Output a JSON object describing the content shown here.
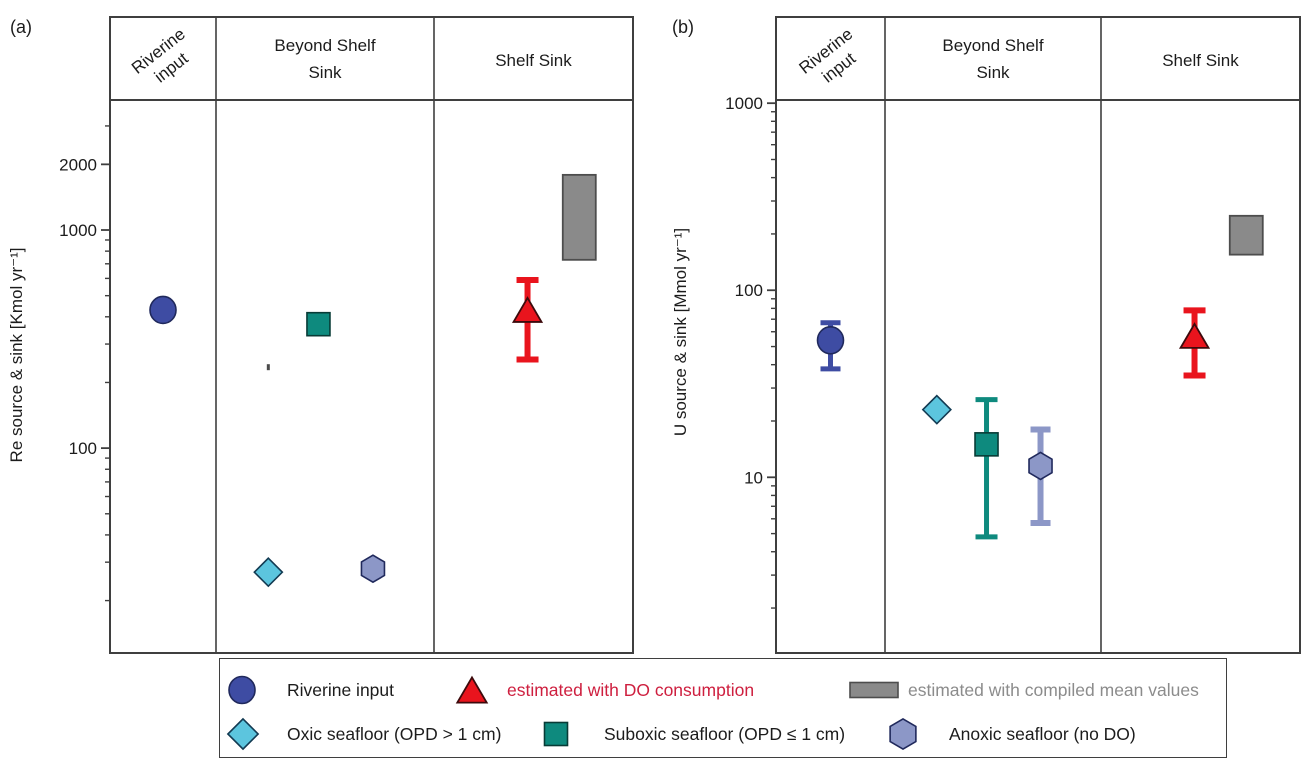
{
  "colors": {
    "riverine_fill": "#3E4CA3",
    "riverine_stroke": "#20295C",
    "oxic_fill": "#5CC5DE",
    "oxic_stroke": "#123A52",
    "suboxic_fill": "#0E8A7E",
    "suboxic_stroke": "#083B36",
    "anoxic_fill": "#8C97C7",
    "anoxic_stroke": "#20295C",
    "red_fill": "#E9141D",
    "red_stroke": "#3D0A0C",
    "gray_fill": "#8A8A8A",
    "gray_stroke": "#4D4D4D",
    "speck_fill": "#4A4A4A",
    "speck_stroke": "#4A4A4A",
    "red_text": "#CE1F3F",
    "gray_text": "#8C8C8C",
    "black_text": "#1C1C1C",
    "axis": "#3F3F3F"
  },
  "chart_data": [
    {
      "type": "scatter",
      "id": "a",
      "panel_label": "(a)",
      "ylabel": "Re source & sink [Kmol yr⁻¹]",
      "yscale": "log",
      "ylim": [
        11.5,
        3945
      ],
      "yticks_labeled": [
        2000,
        1000,
        100
      ],
      "grid": false,
      "columns": [
        [
          "Riverine",
          "input"
        ],
        [
          "Beyond Shelf",
          "Sink"
        ],
        [
          "Shelf Sink"
        ]
      ],
      "points": [
        {
          "label": "Riverine input",
          "marker": "circle",
          "color": "riverine",
          "col": 1,
          "xfrac": 0.5,
          "value": 430
        },
        {
          "label": "Oxic seafloor (OPD > 1 cm)",
          "marker": "diamond",
          "color": "oxic",
          "col": 2,
          "xfrac": 0.24,
          "value": 27
        },
        {
          "label": "Suboxic seafloor (OPD ≤ 1 cm)",
          "marker": "square",
          "color": "suboxic",
          "col": 2,
          "xfrac": 0.47,
          "value": 370
        },
        {
          "label": "Anoxic seafloor (no DO)",
          "marker": "hexagon",
          "color": "anoxic",
          "col": 2,
          "xfrac": 0.72,
          "value": 28
        },
        {
          "label": "estimated with DO consumption",
          "marker": "triangle",
          "color": "red",
          "col": 3,
          "xfrac": 0.47,
          "value": 430,
          "err_low": 255,
          "err_high": 590
        },
        {
          "label": "estimated with compiled mean values",
          "marker": "range-rect",
          "color": "gray",
          "col": 3,
          "xfrac": 0.73,
          "range_low": 730,
          "range_high": 1790
        },
        {
          "label": "stray mark",
          "marker": "speck",
          "color": "speck",
          "col": 2,
          "xfrac": 0.24,
          "value": 235
        }
      ]
    },
    {
      "type": "scatter",
      "id": "b",
      "panel_label": "(b)",
      "ylabel": "U source & sink [Mmol yr⁻¹]",
      "yscale": "log",
      "ylim": [
        1.15,
        1040
      ],
      "yticks_labeled": [
        1000,
        100,
        10
      ],
      "grid": false,
      "columns": [
        [
          "Riverine",
          "input"
        ],
        [
          "Beyond Shelf",
          "Sink"
        ],
        [
          "Shelf Sink"
        ]
      ],
      "points": [
        {
          "label": "Riverine input",
          "marker": "circle",
          "color": "riverine",
          "col": 1,
          "xfrac": 0.5,
          "value": 54,
          "err_low": 38,
          "err_high": 67
        },
        {
          "label": "Oxic seafloor (OPD > 1 cm)",
          "marker": "diamond",
          "color": "oxic",
          "col": 2,
          "xfrac": 0.24,
          "value": 23
        },
        {
          "label": "Suboxic seafloor (OPD ≤ 1 cm)",
          "marker": "square",
          "color": "suboxic",
          "col": 2,
          "xfrac": 0.47,
          "value": 15,
          "err_low": 4.8,
          "err_high": 26
        },
        {
          "label": "Anoxic seafloor (no DO)",
          "marker": "hexagon",
          "color": "anoxic",
          "col": 2,
          "xfrac": 0.72,
          "value": 11.5,
          "err_low": 5.7,
          "err_high": 18
        },
        {
          "label": "estimated with DO consumption",
          "marker": "triangle",
          "color": "red",
          "col": 3,
          "xfrac": 0.47,
          "value": 57,
          "err_low": 35,
          "err_high": 78
        },
        {
          "label": "estimated with compiled mean values",
          "marker": "range-rect",
          "color": "gray",
          "col": 3,
          "xfrac": 0.73,
          "range_low": 155,
          "range_high": 250
        }
      ]
    }
  ],
  "legend": {
    "items": [
      {
        "label": "Riverine input",
        "marker": "circle",
        "color": "riverine",
        "text_color": "black_text"
      },
      {
        "label": "estimated with DO consumption",
        "marker": "triangle",
        "color": "red",
        "text_color": "red_text"
      },
      {
        "label": "estimated with compiled mean values",
        "marker": "range-rect",
        "color": "gray",
        "text_color": "gray_text"
      },
      {
        "label": "Oxic seafloor (OPD > 1 cm)",
        "marker": "diamond",
        "color": "oxic",
        "text_color": "black_text"
      },
      {
        "label": "Suboxic seafloor (OPD ≤ 1 cm)",
        "marker": "square",
        "color": "suboxic",
        "text_color": "black_text"
      },
      {
        "label": "Anoxic seafloor (no DO)",
        "marker": "hexagon",
        "color": "anoxic",
        "text_color": "black_text"
      }
    ]
  }
}
